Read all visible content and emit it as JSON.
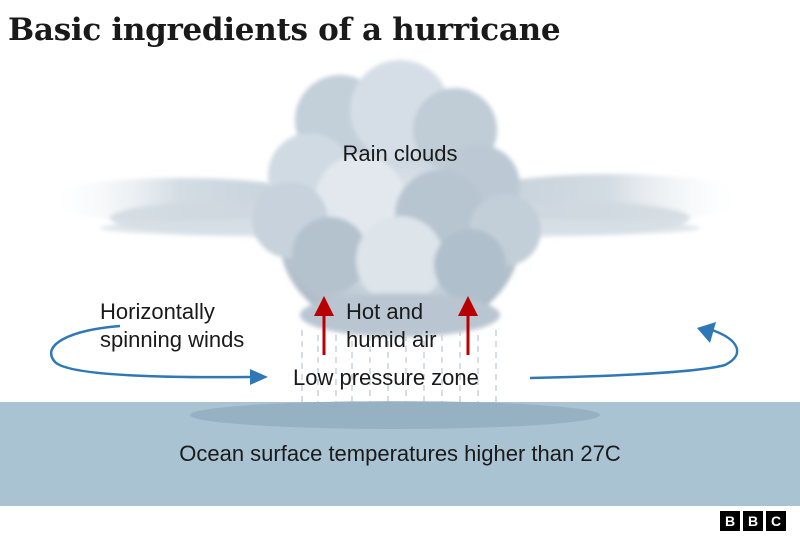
{
  "title": "Basic ingredients of a hurricane",
  "labels": {
    "rain_clouds": "Rain clouds",
    "winds_line1": "Horizontally",
    "winds_line2": "spinning winds",
    "air_line1": "Hot and",
    "air_line2": "humid air",
    "low_pressure": "Low pressure zone",
    "ocean": "Ocean surface temperatures higher than 27C"
  },
  "logo": {
    "letters": [
      "B",
      "B",
      "C"
    ]
  },
  "colors": {
    "ocean": "#a9c3d3",
    "ocean_shadow": "#8fa9b9",
    "cloud": "#c6d2dc",
    "arrow_red": "#b80000",
    "arrow_blue": "#2f78b7"
  }
}
